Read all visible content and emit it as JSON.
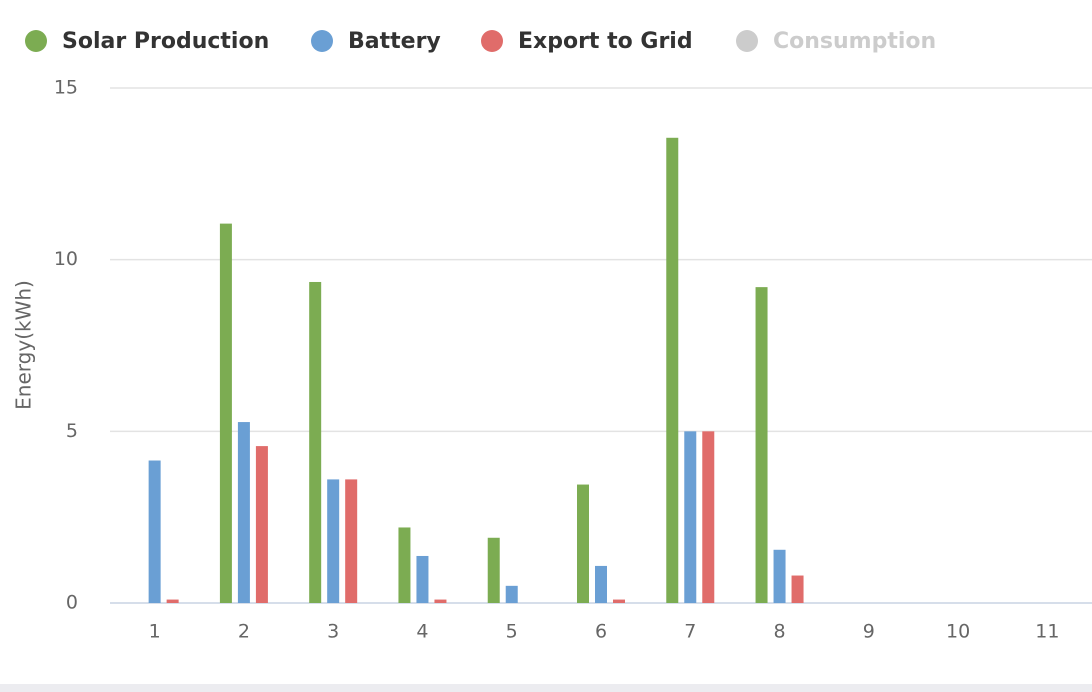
{
  "chart_data": {
    "type": "bar",
    "y_label": "Energy(kWh)",
    "categories": [
      "1",
      "2",
      "3",
      "4",
      "5",
      "6",
      "7",
      "8",
      "9",
      "10",
      "11"
    ],
    "series": [
      {
        "name": "Solar Production",
        "color": "#7cac52",
        "visible": true,
        "values": [
          0,
          11.05,
          9.35,
          2.2,
          1.9,
          3.45,
          13.55,
          9.2,
          0,
          0,
          0
        ]
      },
      {
        "name": "Battery",
        "color": "#6a9fd4",
        "visible": true,
        "values": [
          4.15,
          5.27,
          3.6,
          1.37,
          0.5,
          1.08,
          5,
          1.55,
          0,
          0,
          0
        ]
      },
      {
        "name": "Export to Grid",
        "color": "#e06c6a",
        "visible": true,
        "values": [
          0.1,
          4.57,
          3.6,
          0.1,
          0,
          0.1,
          5,
          0.8,
          0,
          0,
          0
        ]
      },
      {
        "name": "Consumption",
        "color": "#cccccc",
        "visible": false,
        "values": [
          null,
          null,
          null,
          null,
          null,
          null,
          null,
          null,
          null,
          null,
          null
        ]
      }
    ],
    "ylim": [
      0,
      15
    ],
    "yticks": [
      0,
      5,
      10,
      15
    ],
    "grid": true,
    "legend": "top"
  }
}
